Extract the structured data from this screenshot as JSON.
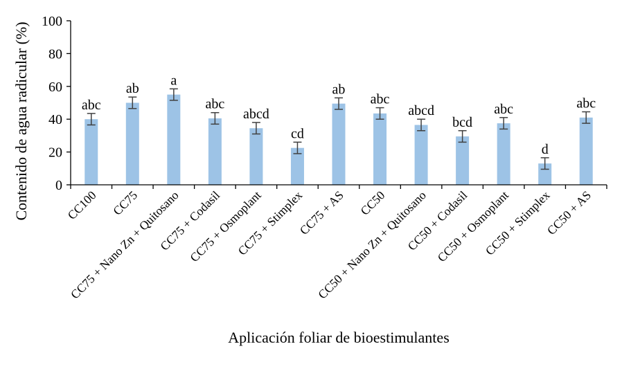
{
  "chart_data": {
    "type": "bar",
    "title": "",
    "xlabel": "Aplicación foliar de bioestimulantes",
    "ylabel": "Contenido de agua radicular (%)",
    "ylim": [
      0,
      100
    ],
    "yticks": [
      0,
      20,
      40,
      60,
      80,
      100
    ],
    "grid": false,
    "legend": "none",
    "bar_color": "#9DC3E6",
    "error_color": "#404040",
    "categories": [
      "CC100",
      "CC75",
      "CC75 + Nano Zn + Quitosano",
      "CC75 + Codasil",
      "CC75 + Osmoplant",
      "CC75 + Stimplex",
      "CC75 + AS",
      "CC50",
      "CC50 + Nano Zn + Quitosano",
      "CC50 + Codasil",
      "CC50 + Osmoplant",
      "CC50 + Stimplex",
      "CC50 + AS"
    ],
    "values": [
      40,
      50,
      55,
      40.5,
      34.5,
      22.5,
      49.5,
      43.5,
      36.5,
      29.5,
      37.5,
      13,
      41
    ],
    "errors": [
      3.5,
      3.5,
      3.5,
      3.5,
      3.5,
      3.5,
      3.5,
      3.5,
      3.5,
      3.5,
      3.5,
      3.5,
      3.5
    ],
    "significance": [
      "abc",
      "ab",
      "a",
      "abc",
      "abcd",
      "cd",
      "ab",
      "abc",
      "abcd",
      "bcd",
      "abc",
      "d",
      "abc"
    ]
  }
}
